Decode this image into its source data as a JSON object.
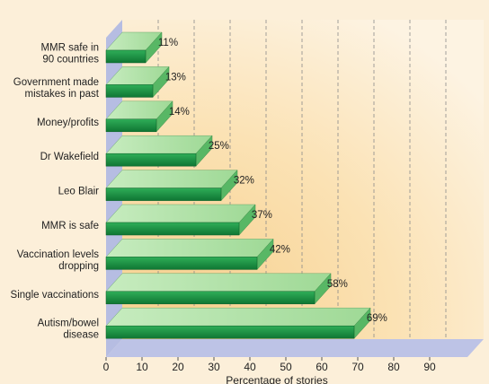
{
  "chart_data": {
    "type": "bar",
    "orientation": "horizontal",
    "style": "3d",
    "categories": [
      [
        "MMR safe in",
        "90 countries"
      ],
      [
        "Government made",
        "mistakes in past"
      ],
      [
        "Money/profits"
      ],
      [
        "Dr Wakefield"
      ],
      [
        "Leo Blair"
      ],
      [
        "MMR is safe"
      ],
      [
        "Vaccination levels",
        "dropping"
      ],
      [
        "Single vaccinations"
      ],
      [
        "Autism/bowel",
        "disease"
      ]
    ],
    "values": [
      11,
      13,
      14,
      25,
      32,
      37,
      42,
      58,
      69
    ],
    "value_labels": [
      "11%",
      "13%",
      "14%",
      "25%",
      "32%",
      "37%",
      "42%",
      "58%",
      "69%"
    ],
    "xlim": [
      0,
      100
    ],
    "xticks": [
      0,
      10,
      20,
      30,
      40,
      50,
      60,
      70,
      80,
      90
    ],
    "xlabel": "Percentage of stories",
    "grid": "vertical-dashed",
    "colors": {
      "bar_front": "#1f9a48",
      "bar_front_dark": "#117a35",
      "bar_top": "#a8dfa0",
      "bar_side": "#58b765",
      "side_wall": "#b6bde2",
      "floor": "#bdc3e6",
      "plot_bg": "#fce9c6",
      "page_bg": "#fcefd9"
    }
  }
}
